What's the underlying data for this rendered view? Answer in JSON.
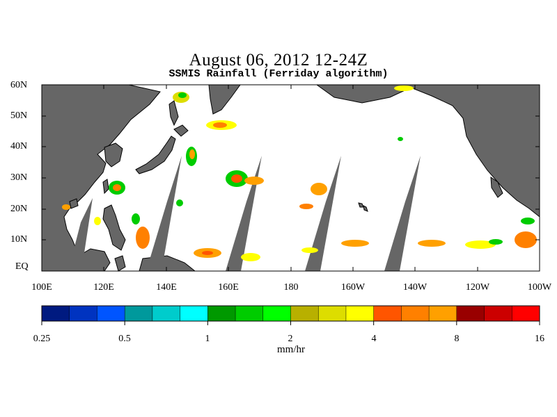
{
  "title": "August 06, 2012 12-24Z",
  "subtitle": "SSMIS Rainfall (Ferriday algorithm)",
  "lat_labels": [
    "60N",
    "50N",
    "40N",
    "30N",
    "20N",
    "10N",
    "EQ"
  ],
  "lon_labels": [
    "100E",
    "120E",
    "140E",
    "160E",
    "180",
    "160W",
    "140W",
    "120W",
    "100W"
  ],
  "colorbar": {
    "colors": [
      "#001a80",
      "#0033c0",
      "#0055ff",
      "#00999c",
      "#00cccc",
      "#00ffff",
      "#009900",
      "#00cc00",
      "#00ff00",
      "#b8b000",
      "#dddd00",
      "#ffff00",
      "#ff5500",
      "#ff8000",
      "#ffa000",
      "#990000",
      "#cc0000",
      "#ff0000"
    ],
    "tick_labels": [
      "0.25",
      "0.5",
      "1",
      "2",
      "4",
      "8",
      "16"
    ],
    "units": "mm/hr"
  },
  "colors": {
    "land": "#666666",
    "ocean": "#ffffff",
    "missing_swath": "#666666"
  }
}
